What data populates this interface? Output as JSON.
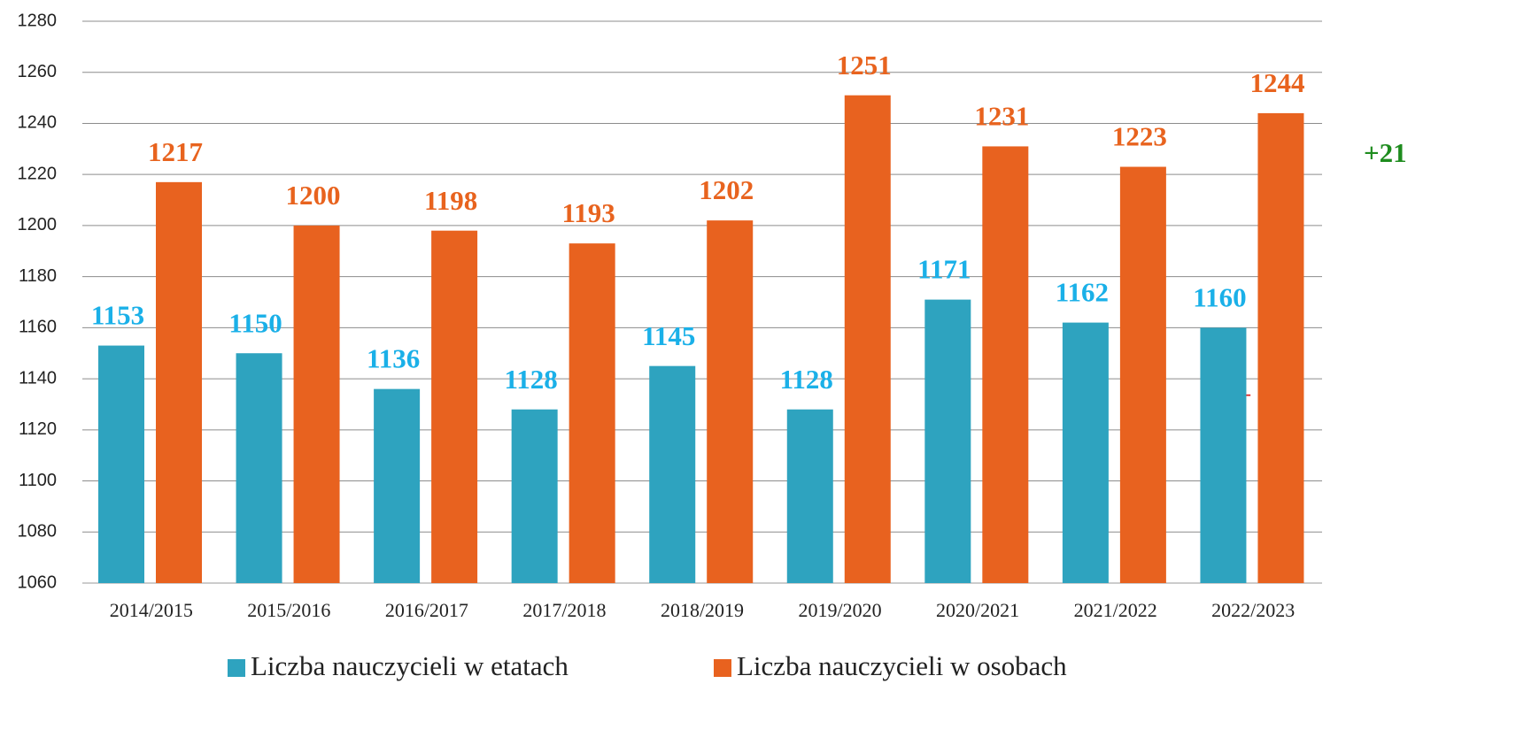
{
  "chart_data": {
    "type": "bar",
    "categories": [
      "2014/2015",
      "2015/2016",
      "2016/2017",
      "2017/2018",
      "2018/2019",
      "2019/2020",
      "2020/2021",
      "2021/2022",
      "2022/2023"
    ],
    "series": [
      {
        "name": "Liczba nauczycieli w etatach",
        "color": "#2ea3bf",
        "label_color": "#1ab0e8",
        "values": [
          1153,
          1150,
          1136,
          1128,
          1145,
          1128,
          1171,
          1162,
          1160
        ]
      },
      {
        "name": "Liczba nauczycieli w osobach",
        "color": "#e8621f",
        "label_color": "#e8631e",
        "values": [
          1217,
          1200,
          1198,
          1193,
          1202,
          1251,
          1231,
          1223,
          1244
        ]
      }
    ],
    "ylim": [
      1060,
      1280
    ],
    "yticks": [
      1060,
      1080,
      1100,
      1120,
      1140,
      1160,
      1180,
      1200,
      1220,
      1240,
      1260,
      1280
    ],
    "grid": true,
    "legend": "bottom",
    "annotations": [
      {
        "text": "+21",
        "color": "#1e8c1e"
      },
      {
        "text": "–",
        "color": "#e01b1b"
      }
    ]
  }
}
